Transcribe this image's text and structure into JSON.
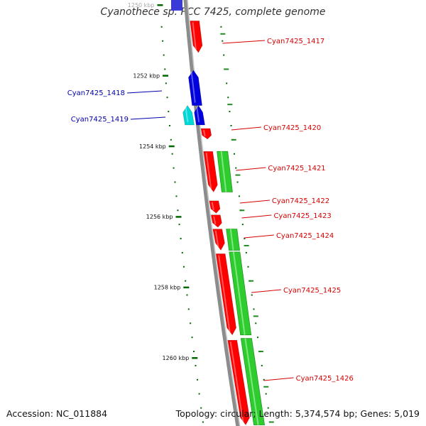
{
  "title": "Cyanothece sp. PCC 7425, complete genome",
  "footer": {
    "accession": "Accession: NC_011884",
    "summary": "Topology: circular; Length: 5,374,574 bp; Genes: 5,019"
  },
  "colors": {
    "backbone": "#8c8c8c",
    "forward_gene": "#ff0000",
    "reverse_gene": "#0000dd",
    "cyan_gene": "#00d8d8",
    "rna_track": "#2ecc2e",
    "tick": "#006600",
    "label_red": "#d40000",
    "label_blue": "#0000aa"
  },
  "ticks": [
    {
      "kbp": 1250,
      "label": "1250 kbp"
    },
    {
      "kbp": 1252,
      "label": "1252 kbp"
    },
    {
      "kbp": 1254,
      "label": "1254 kbp"
    },
    {
      "kbp": 1256,
      "label": "1256 kbp"
    },
    {
      "kbp": 1258,
      "label": "1258 kbp"
    },
    {
      "kbp": 1260,
      "label": "1260 kbp"
    }
  ],
  "genes": [
    {
      "id": "Cyan7425_1417",
      "label": "Cyan7425_1417",
      "strand": "+",
      "start": 1250.45,
      "end": 1251.35,
      "color": "red"
    },
    {
      "id": "Cyan7425_1418",
      "label": "Cyan7425_1418",
      "strand": "-",
      "start": 1251.85,
      "end": 1252.85,
      "color": "blue"
    },
    {
      "id": "Cyan7425_1419",
      "label": "Cyan7425_1419",
      "strand": "-",
      "start": 1252.85,
      "end": 1253.4,
      "color": "cyan"
    },
    {
      "id": "Cyan7425_1419b",
      "label": "",
      "strand": "-",
      "start": 1252.85,
      "end": 1253.4,
      "color": "blue"
    },
    {
      "id": "Cyan7425_1420",
      "label": "Cyan7425_1420",
      "strand": "+",
      "start": 1253.5,
      "end": 1253.8,
      "color": "red"
    },
    {
      "id": "Cyan7425_1421",
      "label": "Cyan7425_1421",
      "strand": "+",
      "start": 1254.15,
      "end": 1255.3,
      "color": "red"
    },
    {
      "id": "Cyan7425_1422",
      "label": "Cyan7425_1422",
      "strand": "+",
      "start": 1255.55,
      "end": 1255.9,
      "color": "red"
    },
    {
      "id": "Cyan7425_1423",
      "label": "Cyan7425_1423",
      "strand": "+",
      "start": 1255.95,
      "end": 1256.3,
      "color": "red"
    },
    {
      "id": "Cyan7425_1424",
      "label": "Cyan7425_1424",
      "strand": "+",
      "start": 1256.35,
      "end": 1256.95,
      "color": "red"
    },
    {
      "id": "Cyan7425_1425",
      "label": "Cyan7425_1425",
      "strand": "+",
      "start": 1257.05,
      "end": 1259.35,
      "color": "red"
    },
    {
      "id": "Cyan7425_1426",
      "label": "Cyan7425_1426",
      "strand": "+",
      "start": 1259.5,
      "end": 1261.9,
      "color": "red"
    }
  ],
  "rna_features": [
    {
      "start": 1254.15,
      "end": 1255.3
    },
    {
      "start": 1256.35,
      "end": 1256.95
    },
    {
      "start": 1257.0,
      "end": 1259.35
    },
    {
      "start": 1259.45,
      "end": 1261.9
    }
  ],
  "top_stub": {
    "start": 1249.4,
    "end": 1249.7
  }
}
